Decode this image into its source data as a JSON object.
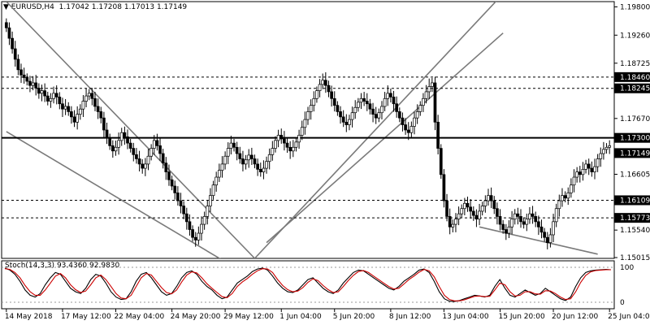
{
  "header": {
    "symbol": "EURUSD,H4",
    "open": "1.17042",
    "high": "1.17208",
    "low": "1.17013",
    "close": "1.17149"
  },
  "stoch_header": {
    "label": "Stoch(14,3,3)",
    "main": "93.4360",
    "signal": "92.9830"
  },
  "colors": {
    "bull_candle": "#000000",
    "bear_candle": "#000000",
    "stoch_main": "#000000",
    "stoch_signal": "#cc0000",
    "channel_lines": "#7a7a7a",
    "price_label_bg": "#000000",
    "price_label_text": "#ffffff"
  },
  "chart_data": [
    {
      "type": "candlestick",
      "ylim": [
        1.15,
        1.199
      ],
      "y_ticks": [
        "1.19800",
        "1.19260",
        "1.18725",
        "1.17670",
        "1.16605",
        "1.15540",
        "1.15015"
      ],
      "x_ticks": [
        "14 May 2018",
        "17 May 12:00",
        "22 May 04:00",
        "24 May 20:00",
        "29 May 12:00",
        "1 Jun 04:00",
        "5 Jun 20:00",
        "8 Jun 12:00",
        "13 Jun 04:00",
        "15 Jun 20:00",
        "20 Jun 12:00",
        "25 Jun 04:00"
      ],
      "horizontal_levels": [
        {
          "label": "1.18460",
          "value": 1.1846,
          "style": "dashed",
          "labeled": true
        },
        {
          "label": "1.18245",
          "value": 1.18245,
          "style": "dashed",
          "labeled": true
        },
        {
          "label": "1.17300",
          "value": 1.173,
          "style": "solid-thick",
          "labeled": true
        },
        {
          "label": "1.16109",
          "value": 1.16109,
          "style": "dashed",
          "labeled": true
        },
        {
          "label": "1.15773",
          "value": 1.15773,
          "style": "dashed",
          "labeled": true
        }
      ],
      "current_price_label": "1.17149",
      "current_price": 1.17149,
      "close_path": [
        1.194,
        1.192,
        1.19,
        1.188,
        1.186,
        1.185,
        1.1845,
        1.1838,
        1.183,
        1.1835,
        1.1825,
        1.1815,
        1.182,
        1.181,
        1.18,
        1.1805,
        1.1815,
        1.1808,
        1.1795,
        1.1785,
        1.179,
        1.178,
        1.177,
        1.176,
        1.1775,
        1.1785,
        1.18,
        1.181,
        1.1815,
        1.1805,
        1.179,
        1.178,
        1.1768,
        1.1745,
        1.173,
        1.1715,
        1.1705,
        1.1712,
        1.1725,
        1.174,
        1.1732,
        1.172,
        1.171,
        1.1698,
        1.169,
        1.168,
        1.1672,
        1.168,
        1.1695,
        1.171,
        1.1725,
        1.1715,
        1.17,
        1.1682,
        1.1665,
        1.165,
        1.1638,
        1.1625,
        1.161,
        1.16,
        1.1585,
        1.157,
        1.1555,
        1.154,
        1.1535,
        1.1548,
        1.1565,
        1.158,
        1.16,
        1.162,
        1.164,
        1.1655,
        1.1668,
        1.168,
        1.1695,
        1.171,
        1.172,
        1.1712,
        1.17,
        1.169,
        1.168,
        1.1688,
        1.1697,
        1.169,
        1.168,
        1.167,
        1.1665,
        1.1672,
        1.1685,
        1.1698,
        1.171,
        1.1725,
        1.1735,
        1.1728,
        1.172,
        1.1712,
        1.1705,
        1.1712,
        1.1722,
        1.1735,
        1.175,
        1.1765,
        1.178,
        1.1792,
        1.1805,
        1.182,
        1.1832,
        1.184,
        1.183,
        1.1818,
        1.1805,
        1.1792,
        1.178,
        1.177,
        1.176,
        1.1755,
        1.1765,
        1.1778,
        1.1788,
        1.1798,
        1.1805,
        1.18,
        1.1795,
        1.1785,
        1.1775,
        1.1768,
        1.1778,
        1.179,
        1.1805,
        1.1815,
        1.1808,
        1.1795,
        1.178,
        1.1768,
        1.1755,
        1.1745,
        1.174,
        1.1752,
        1.1768,
        1.178,
        1.1792,
        1.1805,
        1.1818,
        1.1828,
        1.1835,
        1.176,
        1.171,
        1.166,
        1.161,
        1.158,
        1.156,
        1.1565,
        1.1575,
        1.1585,
        1.1595,
        1.1605,
        1.1598,
        1.159,
        1.1582,
        1.1575,
        1.159,
        1.16,
        1.161,
        1.162,
        1.161,
        1.1595,
        1.158,
        1.1565,
        1.1555,
        1.1548,
        1.156,
        1.1575,
        1.1585,
        1.158,
        1.157,
        1.1565,
        1.1575,
        1.1585,
        1.158,
        1.157,
        1.156,
        1.155,
        1.154,
        1.153,
        1.1545,
        1.157,
        1.1595,
        1.161,
        1.162,
        1.1615,
        1.1625,
        1.164,
        1.1655,
        1.1665,
        1.166,
        1.167,
        1.168,
        1.1672,
        1.1665,
        1.1675,
        1.169,
        1.17,
        1.1708,
        1.1712,
        1.1715
      ],
      "channel_lines": [
        {
          "from": [
            0,
            1.199
          ],
          "to": [
            84,
            1.15
          ]
        },
        {
          "from": [
            0,
            1.1742
          ],
          "to": [
            84,
            1.146
          ]
        },
        {
          "from": [
            84,
            1.15
          ],
          "to": [
            168,
            1.2005
          ]
        },
        {
          "from": [
            88,
            1.153
          ],
          "to": [
            168,
            1.193
          ]
        },
        {
          "from": [
            160,
            1.156
          ],
          "to": [
            200,
            1.1508
          ]
        }
      ]
    },
    {
      "type": "line",
      "title": "Stoch(14,3,3)",
      "ylim": [
        0,
        100
      ],
      "y_ticks": [
        "100",
        "0"
      ],
      "series": [
        {
          "name": "main",
          "values": [
            98,
            92,
            80,
            60,
            35,
            20,
            15,
            25,
            50,
            70,
            85,
            80,
            60,
            40,
            30,
            25,
            40,
            65,
            80,
            75,
            55,
            30,
            15,
            8,
            10,
            30,
            60,
            80,
            85,
            70,
            50,
            30,
            20,
            25,
            45,
            70,
            85,
            90,
            80,
            60,
            45,
            35,
            20,
            10,
            15,
            35,
            55,
            65,
            75,
            88,
            95,
            98,
            92,
            75,
            55,
            40,
            30,
            28,
            35,
            50,
            65,
            70,
            55,
            40,
            30,
            25,
            35,
            55,
            70,
            85,
            92,
            90,
            80,
            70,
            60,
            50,
            40,
            35,
            45,
            60,
            70,
            80,
            92,
            95,
            85,
            60,
            30,
            10,
            3,
            2,
            5,
            10,
            15,
            20,
            18,
            15,
            20,
            45,
            65,
            40,
            20,
            15,
            25,
            35,
            28,
            20,
            25,
            40,
            30,
            20,
            10,
            5,
            15,
            45,
            70,
            85,
            90,
            92,
            93,
            94,
            93
          ]
        },
        {
          "name": "signal",
          "values": [
            96,
            94,
            85,
            70,
            48,
            30,
            20,
            20,
            35,
            55,
            75,
            82,
            70,
            50,
            36,
            28,
            32,
            50,
            70,
            78,
            65,
            45,
            25,
            12,
            10,
            20,
            45,
            70,
            82,
            78,
            60,
            42,
            28,
            24,
            35,
            58,
            78,
            87,
            84,
            70,
            53,
            40,
            28,
            16,
            13,
            25,
            45,
            58,
            68,
            80,
            90,
            96,
            95,
            85,
            65,
            48,
            36,
            30,
            32,
            42,
            57,
            67,
            62,
            48,
            36,
            28,
            30,
            45,
            62,
            77,
            88,
            91,
            85,
            75,
            65,
            55,
            45,
            38,
            40,
            52,
            65,
            75,
            86,
            94,
            90,
            73,
            45,
            20,
            8,
            4,
            4,
            7,
            12,
            17,
            18,
            16,
            17,
            35,
            55,
            50,
            30,
            18,
            20,
            30,
            30,
            24,
            23,
            33,
            32,
            25,
            15,
            8,
            10,
            30,
            57,
            77,
            87,
            91,
            92,
            93,
            93
          ]
        }
      ]
    }
  ]
}
